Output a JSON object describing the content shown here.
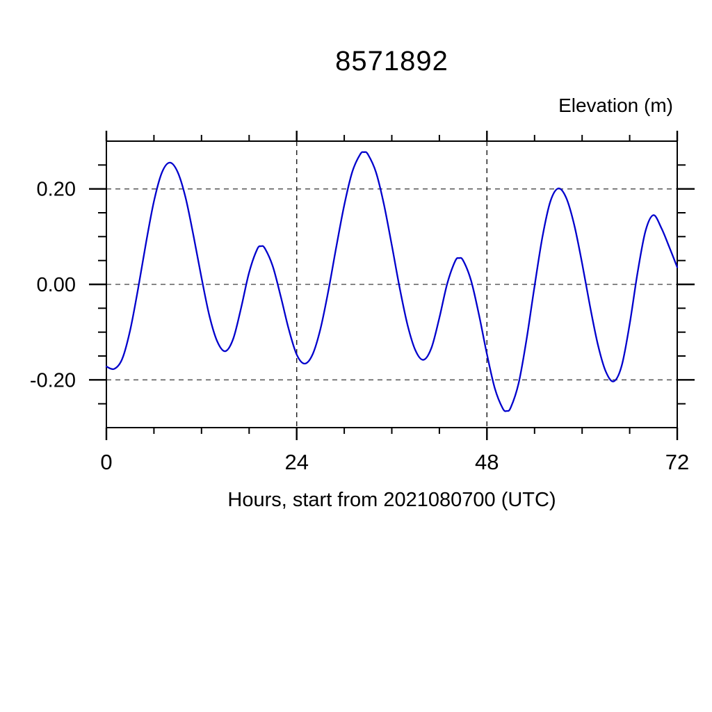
{
  "chart": {
    "title": "8571892",
    "y_axis_title": "Elevation (m)",
    "x_axis_title": "Hours, start from 2021080700 (UTC)"
  },
  "chart_data": {
    "type": "line",
    "title": "8571892",
    "xlabel": "Hours, start from 2021080700 (UTC)",
    "ylabel": "Elevation (m)",
    "xlim": [
      0,
      72
    ],
    "ylim": [
      -0.3,
      0.3
    ],
    "x_major_ticks": [
      0,
      24,
      48,
      72
    ],
    "x_major_tick_labels": [
      "0",
      "24",
      "48",
      "72"
    ],
    "x_minor_tick_step": 6,
    "y_major_ticks": [
      0.2,
      0.0,
      -0.2
    ],
    "y_major_tick_labels": [
      "0.20",
      "0.00",
      "-0.20"
    ],
    "y_minor_tick_step": 0.05,
    "grid_x": [
      24,
      48,
      72
    ],
    "grid_y": [
      0.2,
      0.0,
      -0.2
    ],
    "grid_style": "dashed",
    "legend": "none",
    "line_color": "#0000CC",
    "series": [
      {
        "name": "Elevation",
        "color": "#0000CC",
        "x": [
          0,
          1,
          2,
          3,
          4,
          5,
          6,
          7,
          8,
          9,
          10,
          11,
          12,
          13,
          14,
          15,
          16,
          17,
          18,
          19,
          19.5,
          20,
          21,
          22,
          23,
          24,
          25,
          26,
          27,
          28,
          29,
          30,
          31,
          32,
          32.5,
          33,
          34,
          35,
          36,
          37,
          38,
          39,
          40,
          41,
          42,
          43,
          44,
          44.5,
          45,
          46,
          47,
          48,
          49,
          50,
          50.5,
          51,
          52,
          53,
          54,
          55,
          56,
          57,
          58,
          59,
          60,
          61,
          62,
          63,
          64,
          65,
          66,
          67,
          68,
          69,
          70,
          71,
          72
        ],
        "values": [
          -0.172,
          -0.177,
          -0.156,
          -0.096,
          -0.009,
          0.087,
          0.174,
          0.234,
          0.255,
          0.235,
          0.181,
          0.101,
          0.014,
          -0.066,
          -0.12,
          -0.14,
          -0.114,
          -0.049,
          0.025,
          0.073,
          0.08,
          0.075,
          0.037,
          -0.026,
          -0.094,
          -0.147,
          -0.166,
          -0.147,
          -0.093,
          -0.013,
          0.079,
          0.166,
          0.235,
          0.272,
          0.277,
          0.272,
          0.235,
          0.168,
          0.082,
          -0.008,
          -0.086,
          -0.139,
          -0.158,
          -0.133,
          -0.07,
          0.002,
          0.049,
          0.055,
          0.05,
          0.008,
          -0.064,
          -0.146,
          -0.218,
          -0.26,
          -0.265,
          -0.258,
          -0.207,
          -0.115,
          -0.004,
          0.1,
          0.174,
          0.201,
          0.181,
          0.125,
          0.044,
          -0.046,
          -0.127,
          -0.183,
          -0.203,
          -0.17,
          -0.083,
          0.025,
          0.112,
          0.145,
          0.118,
          0.078,
          0.036
        ]
      }
    ]
  }
}
